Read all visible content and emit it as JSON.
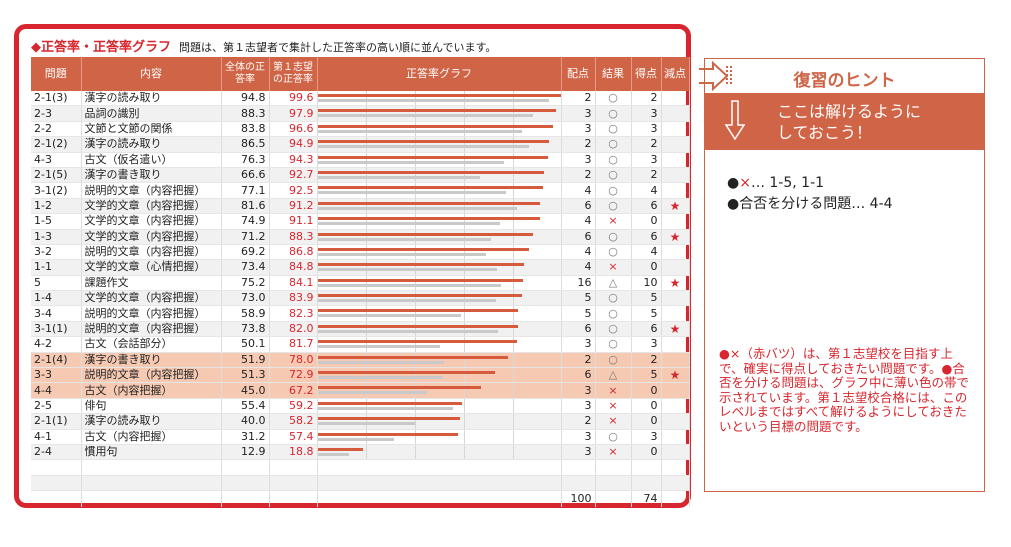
{
  "panel": {
    "heading": "◆正答率・正答率グラフ",
    "description": "問題は、第１志望者で集計した正答率の高い順に並んでいます。"
  },
  "columns": {
    "q": "問題",
    "content": "内容",
    "overall": "全体の正答率",
    "first_choice": "第１志望の正答率",
    "graph": "正答率グラフ",
    "points": "配点",
    "result": "結果",
    "score": "得点",
    "deduct": "減点"
  },
  "rows": [
    {
      "q": "2-1(3)",
      "content": "漢字の読み取り",
      "overall": "94.8",
      "fav": "99.6",
      "points": "2",
      "result": "○",
      "score": "2",
      "mark": "",
      "hl": false
    },
    {
      "q": "2-3",
      "content": "品詞の識別",
      "overall": "88.3",
      "fav": "97.9",
      "points": "3",
      "result": "○",
      "score": "3",
      "mark": "",
      "hl": false
    },
    {
      "q": "2-2",
      "content": "文節と文節の関係",
      "overall": "83.8",
      "fav": "96.6",
      "points": "3",
      "result": "○",
      "score": "3",
      "mark": "",
      "hl": false
    },
    {
      "q": "2-1(2)",
      "content": "漢字の読み取り",
      "overall": "86.5",
      "fav": "94.9",
      "points": "2",
      "result": "○",
      "score": "2",
      "mark": "",
      "hl": false
    },
    {
      "q": "4-3",
      "content": "古文（仮名遣い）",
      "overall": "76.3",
      "fav": "94.3",
      "points": "3",
      "result": "○",
      "score": "3",
      "mark": "",
      "hl": false
    },
    {
      "q": "2-1(5)",
      "content": "漢字の書き取り",
      "overall": "66.6",
      "fav": "92.7",
      "points": "2",
      "result": "○",
      "score": "2",
      "mark": "",
      "hl": false
    },
    {
      "q": "3-1(2)",
      "content": "説明的文章（内容把握）",
      "overall": "77.1",
      "fav": "92.5",
      "points": "4",
      "result": "○",
      "score": "4",
      "mark": "",
      "hl": false
    },
    {
      "q": "1-2",
      "content": "文学的文章（内容把握）",
      "overall": "81.6",
      "fav": "91.2",
      "points": "6",
      "result": "○",
      "score": "6",
      "mark": "★",
      "hl": false
    },
    {
      "q": "1-5",
      "content": "文学的文章（内容把握）",
      "overall": "74.9",
      "fav": "91.1",
      "points": "4",
      "result": "×",
      "score": "0",
      "mark": "",
      "hl": false
    },
    {
      "q": "1-3",
      "content": "文学的文章（内容把握）",
      "overall": "71.2",
      "fav": "88.3",
      "points": "6",
      "result": "○",
      "score": "6",
      "mark": "★",
      "hl": false
    },
    {
      "q": "3-2",
      "content": "説明的文章（内容把握）",
      "overall": "69.2",
      "fav": "86.8",
      "points": "4",
      "result": "○",
      "score": "4",
      "mark": "",
      "hl": false
    },
    {
      "q": "1-1",
      "content": "文学的文章（心情把握）",
      "overall": "73.4",
      "fav": "84.8",
      "points": "4",
      "result": "×",
      "score": "0",
      "mark": "",
      "hl": false
    },
    {
      "q": "5",
      "content": "課題作文",
      "overall": "75.2",
      "fav": "84.1",
      "points": "16",
      "result": "△",
      "score": "10",
      "mark": "★",
      "hl": false
    },
    {
      "q": "1-4",
      "content": "文学的文章（内容把握）",
      "overall": "73.0",
      "fav": "83.9",
      "points": "5",
      "result": "○",
      "score": "5",
      "mark": "",
      "hl": false
    },
    {
      "q": "3-4",
      "content": "説明的文章（内容把握）",
      "overall": "58.9",
      "fav": "82.3",
      "points": "5",
      "result": "○",
      "score": "5",
      "mark": "",
      "hl": false
    },
    {
      "q": "3-1(1)",
      "content": "説明的文章（内容把握）",
      "overall": "73.8",
      "fav": "82.0",
      "points": "6",
      "result": "○",
      "score": "6",
      "mark": "★",
      "hl": false
    },
    {
      "q": "4-2",
      "content": "古文（会話部分）",
      "overall": "50.1",
      "fav": "81.7",
      "points": "3",
      "result": "○",
      "score": "3",
      "mark": "",
      "hl": false
    },
    {
      "q": "2-1(4)",
      "content": "漢字の書き取り",
      "overall": "51.9",
      "fav": "78.0",
      "points": "2",
      "result": "○",
      "score": "2",
      "mark": "",
      "hl": true
    },
    {
      "q": "3-3",
      "content": "説明的文章（内容把握）",
      "overall": "51.3",
      "fav": "72.9",
      "points": "6",
      "result": "△",
      "score": "5",
      "mark": "★",
      "hl": true
    },
    {
      "q": "4-4",
      "content": "古文（内容把握）",
      "overall": "45.0",
      "fav": "67.2",
      "points": "3",
      "result": "×",
      "score": "0",
      "mark": "",
      "hl": true
    },
    {
      "q": "2-5",
      "content": "俳句",
      "overall": "55.4",
      "fav": "59.2",
      "points": "3",
      "result": "×",
      "score": "0",
      "mark": "",
      "hl": false
    },
    {
      "q": "2-1(1)",
      "content": "漢字の読み取り",
      "overall": "40.0",
      "fav": "58.2",
      "points": "2",
      "result": "×",
      "score": "0",
      "mark": "",
      "hl": false
    },
    {
      "q": "4-1",
      "content": "古文（内容把握）",
      "overall": "31.2",
      "fav": "57.4",
      "points": "3",
      "result": "○",
      "score": "3",
      "mark": "",
      "hl": false
    },
    {
      "q": "2-4",
      "content": "慣用句",
      "overall": "12.9",
      "fav": "18.8",
      "points": "3",
      "result": "×",
      "score": "0",
      "mark": "",
      "hl": false
    }
  ],
  "totals": {
    "points": "100",
    "score": "74"
  },
  "hint": {
    "title": "復習のヒント",
    "subtitle_line1": "ここは解けるように",
    "subtitle_line2": "しておこう！",
    "item1_prefix": "●",
    "item1_x": "×",
    "item1_text": "… 1-5,  1-1",
    "item2": "●合否を分ける問題… 4-4",
    "note": "●×（赤バツ）は、第１志望校を目指す上で、確実に得点しておきたい問題です。●合否を分ける問題は、グラフ中に薄い色の帯で示されています。第１志望校合格には、このレベルまではすべて解けるようにしておきたいという目標の問題です。"
  },
  "colors": {
    "accent": "#d8262e",
    "header": "#cf6446",
    "highlight": "#f6c9b2",
    "bar_first": "#d65a3c",
    "bar_overall": "#c9c9c9"
  }
}
